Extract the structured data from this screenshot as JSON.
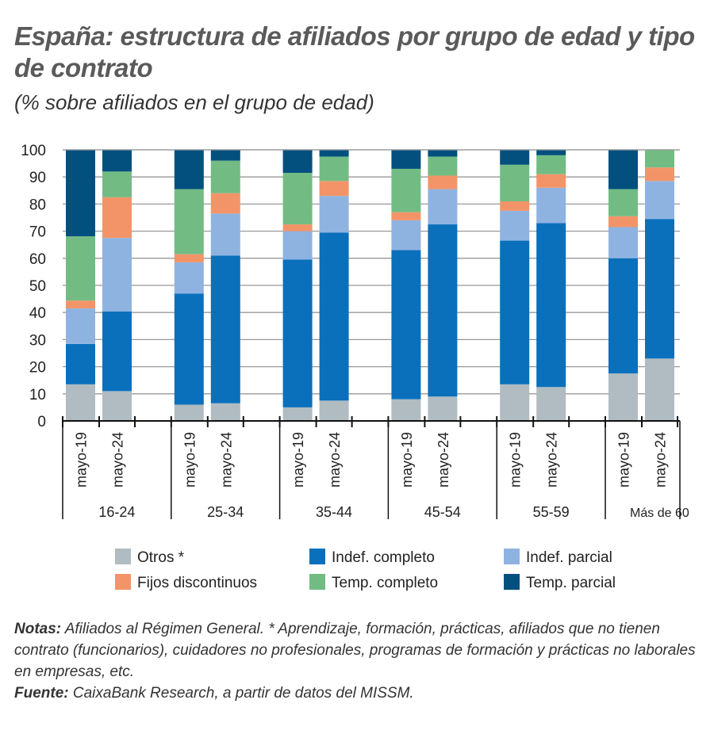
{
  "title": "España: estructura de afiliados por grupo de edad y tipo de contrato",
  "subtitle": "(% sobre afiliados en el grupo de edad)",
  "chart_data": {
    "type": "bar",
    "stacked": true,
    "ylim": [
      0,
      100
    ],
    "yticks": [
      "0",
      "10",
      "20",
      "30",
      "40",
      "50",
      "60",
      "70",
      "80",
      "90",
      "100"
    ],
    "grid": true,
    "legend_position": "bottom",
    "groups": [
      "16-24",
      "25-34",
      "35-44",
      "45-54",
      "55-59",
      "Más de 60"
    ],
    "periods": [
      "mayo-19",
      "mayo-24"
    ],
    "series": [
      {
        "name": "Otros *",
        "color": "#b0bcc1",
        "values": [
          [
            13.5,
            11
          ],
          [
            6,
            6.5
          ],
          [
            5,
            7.5
          ],
          [
            8,
            9
          ],
          [
            13.5,
            12.5
          ],
          [
            17.5,
            23
          ]
        ]
      },
      {
        "name": "Indef. completo",
        "color": "#0a70bc",
        "values": [
          [
            14.9,
            29.4
          ],
          [
            41,
            54.5
          ],
          [
            54.5,
            62
          ],
          [
            55,
            63.5
          ],
          [
            53,
            60.5
          ],
          [
            42.5,
            51.5
          ]
        ]
      },
      {
        "name": "Indef. parcial",
        "color": "#8fb3e1",
        "values": [
          [
            13.1,
            27.1
          ],
          [
            11.5,
            15.5
          ],
          [
            10.5,
            13.5
          ],
          [
            11,
            13
          ],
          [
            11,
            13
          ],
          [
            11.5,
            14
          ]
        ]
      },
      {
        "name": "Fijos discontinuos",
        "color": "#f39468",
        "values": [
          [
            2.9,
            15
          ],
          [
            3,
            7.5
          ],
          [
            2.5,
            5.5
          ],
          [
            3,
            5
          ],
          [
            3.5,
            5
          ],
          [
            4,
            5
          ]
        ]
      },
      {
        "name": "Temp. completo",
        "color": "#72bc84",
        "values": [
          [
            23.7,
            9.5
          ],
          [
            24,
            12
          ],
          [
            19,
            9
          ],
          [
            16,
            7
          ],
          [
            13.5,
            7
          ],
          [
            10,
            6.5
          ]
        ]
      },
      {
        "name": "Temp. parcial",
        "color": "#03507f",
        "values": [
          [
            31.9,
            8
          ],
          [
            14.5,
            4
          ],
          [
            8.5,
            2.5
          ],
          [
            7,
            2.5
          ],
          [
            5.5,
            2
          ],
          [
            14.5,
            0
          ]
        ]
      }
    ]
  },
  "notes": {
    "notes_label": "Notas:",
    "notes_text": " Afiliados al Régimen General. * Aprendizaje, formación, prácticas, afiliados que no tienen contrato (funcionarios), cuidadores no profesionales, programas de formación y prácticas no laborales en empresas, etc.",
    "source_label": "Fuente:",
    "source_text": " CaixaBank Research, a partir de datos del MISSM."
  }
}
